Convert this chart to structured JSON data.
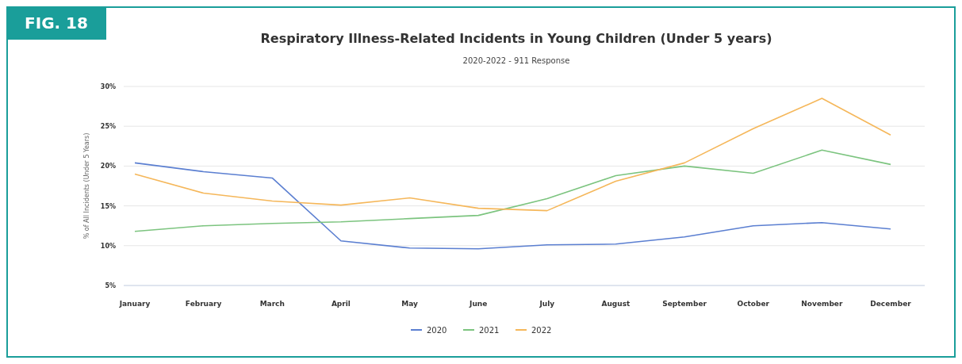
{
  "chart_data": {
    "type": "line",
    "title": "Respiratory Illness-Related Incidents in Young Children (Under 5 years)",
    "subtitle": "2020-2022 - 911 Response",
    "ylabel": "% of All Incidents (Under 5 Years)",
    "annotations": [
      "FIG. 18"
    ],
    "categories": [
      "January",
      "February",
      "March",
      "April",
      "May",
      "June",
      "July",
      "August",
      "September",
      "October",
      "November",
      "December"
    ],
    "series": [
      {
        "name": "2020",
        "color": "#5b7fd1",
        "values": [
          20.4,
          19.3,
          18.5,
          10.6,
          9.7,
          9.6,
          10.1,
          10.2,
          11.1,
          12.5,
          12.9,
          12.1
        ]
      },
      {
        "name": "2021",
        "color": "#7cc47f",
        "values": [
          11.8,
          12.5,
          12.8,
          13.0,
          13.4,
          13.8,
          15.9,
          18.8,
          20.0,
          19.1,
          22.0,
          20.2
        ]
      },
      {
        "name": "2022",
        "color": "#f5b75a",
        "values": [
          19.0,
          16.6,
          15.6,
          15.1,
          16.0,
          14.7,
          14.4,
          18.1,
          20.4,
          24.7,
          28.5,
          23.9
        ]
      }
    ],
    "ylim": [
      5,
      30
    ],
    "yticks": [
      {
        "value": 5,
        "label": "5%"
      },
      {
        "value": 10,
        "label": "10%"
      },
      {
        "value": 15,
        "label": "15%"
      },
      {
        "value": 20,
        "label": "20%"
      },
      {
        "value": 25,
        "label": "25%"
      },
      {
        "value": 30,
        "label": "30%"
      }
    ],
    "grid": "y",
    "legend": "bottom",
    "marker": "none",
    "line_style": "solid"
  }
}
